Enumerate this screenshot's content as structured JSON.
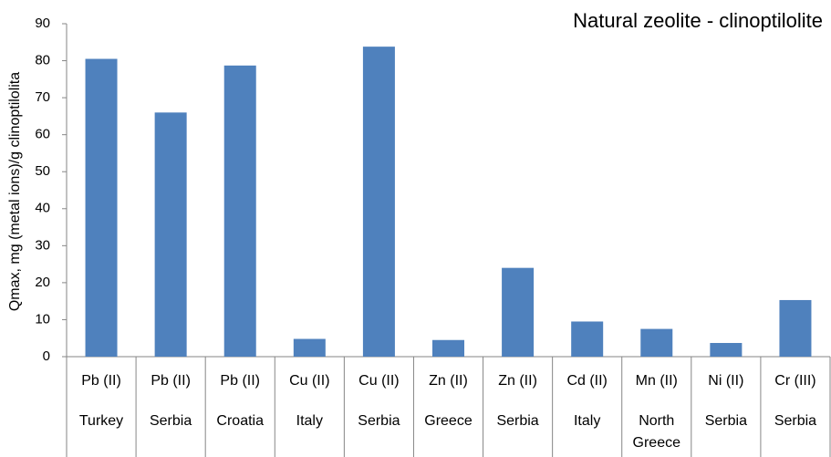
{
  "chart_data": {
    "type": "bar",
    "title": "Natural zeolite - clinoptilolite",
    "ylabel": "Qmax, mg (metal ions)/g clinoptilolita",
    "categories": [
      [
        "Pb (II)",
        "Turkey"
      ],
      [
        "Pb (II)",
        "Serbia"
      ],
      [
        "Pb (II)",
        "Croatia"
      ],
      [
        "Cu (II)",
        "Italy"
      ],
      [
        "Cu (II)",
        "Serbia"
      ],
      [
        "Zn (II)",
        "Greece"
      ],
      [
        "Zn (II)",
        "Serbia"
      ],
      [
        "Cd (II)",
        "Italy"
      ],
      [
        "Mn (II)",
        "North Greece"
      ],
      [
        "Ni (II)",
        "Serbia"
      ],
      [
        "Cr (III)",
        "Serbia"
      ]
    ],
    "values": [
      80.5,
      66,
      78.7,
      4.8,
      83.8,
      4.5,
      24,
      9.5,
      7.5,
      3.7,
      15.3
    ],
    "color": "#4f81bd",
    "ylim": [
      0,
      90
    ],
    "yticks": [
      0,
      10,
      20,
      30,
      40,
      50,
      60,
      70,
      80,
      90
    ],
    "grid": false
  }
}
